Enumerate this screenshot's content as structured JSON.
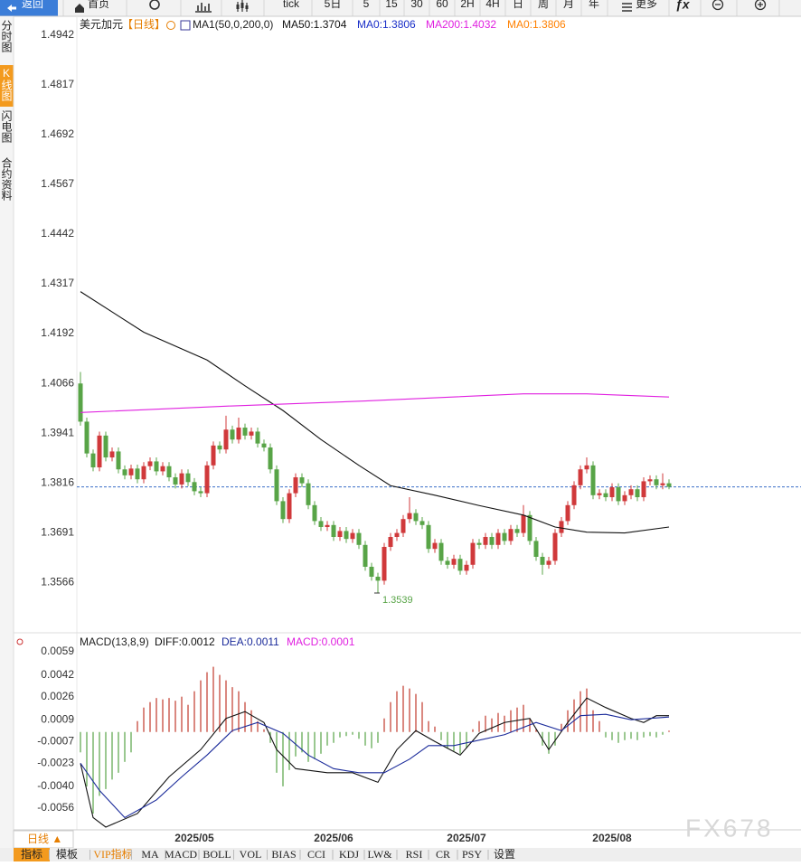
{
  "toolbar": {
    "back": "返回",
    "home": "首页",
    "items": [
      "tick",
      "5日",
      "5",
      "15",
      "30",
      "60",
      "2H",
      "4H",
      "日",
      "周",
      "月",
      "年"
    ],
    "more": "更多"
  },
  "sidebar": [
    "分时图",
    "K线图",
    "闪电图",
    "合约资料"
  ],
  "period_button": "日线 ▲",
  "bottom_tabs": [
    "指标",
    "模板",
    "VIP指标",
    "MA",
    "MACD",
    "BOLL",
    "VOL",
    "BIAS",
    "CCI",
    "KDJ",
    "LW&",
    "RSI",
    "CR",
    "PSY",
    "设置"
  ],
  "watermark": "FX678",
  "chart_data": [
    {
      "type": "candlestick",
      "title": "美元加元",
      "period": "【日线】",
      "indicator": "MA1(50,0,200,0)",
      "up_color": "#d0393b",
      "down_color": "#58a447",
      "ylim": [
        1.3439,
        1.4985
      ],
      "yticks": [
        1.4942,
        1.4817,
        1.4692,
        1.4567,
        1.4442,
        1.4317,
        1.4192,
        1.4066,
        1.3941,
        1.3816,
        1.3691,
        1.3566
      ],
      "ohlc": [
        [
          1.4066,
          1.4095,
          1.396,
          1.397
        ],
        [
          1.397,
          1.398,
          1.388,
          1.389
        ],
        [
          1.389,
          1.39,
          1.3845,
          1.3855
        ],
        [
          1.3855,
          1.3945,
          1.3845,
          1.3935
        ],
        [
          1.3935,
          1.3945,
          1.387,
          1.388
        ],
        [
          1.388,
          1.3905,
          1.387,
          1.3895
        ],
        [
          1.3895,
          1.3905,
          1.384,
          1.385
        ],
        [
          1.385,
          1.386,
          1.3825,
          1.3835
        ],
        [
          1.3835,
          1.3862,
          1.3825,
          1.3852
        ],
        [
          1.3852,
          1.3862,
          1.3815,
          1.3825
        ],
        [
          1.3825,
          1.3868,
          1.3815,
          1.3858
        ],
        [
          1.3858,
          1.388,
          1.3848,
          1.387
        ],
        [
          1.387,
          1.388,
          1.3835,
          1.3845
        ],
        [
          1.3845,
          1.3868,
          1.3835,
          1.3858
        ],
        [
          1.3858,
          1.3868,
          1.382,
          1.383
        ],
        [
          1.383,
          1.384,
          1.3802,
          1.3812
        ],
        [
          1.3812,
          1.385,
          1.3802,
          1.384
        ],
        [
          1.384,
          1.385,
          1.3808,
          1.3818
        ],
        [
          1.3818,
          1.3828,
          1.3785,
          1.3795
        ],
        [
          1.3795,
          1.3805,
          1.378,
          1.379
        ],
        [
          1.379,
          1.387,
          1.378,
          1.386
        ],
        [
          1.386,
          1.392,
          1.385,
          1.391
        ],
        [
          1.391,
          1.392,
          1.389,
          1.39
        ],
        [
          1.39,
          1.3985,
          1.389,
          1.395
        ],
        [
          1.395,
          1.396,
          1.3915,
          1.3925
        ],
        [
          1.3925,
          1.398,
          1.3915,
          1.3955
        ],
        [
          1.3955,
          1.3965,
          1.3925,
          1.3935
        ],
        [
          1.3935,
          1.3955,
          1.3925,
          1.3945
        ],
        [
          1.3945,
          1.3955,
          1.3905,
          1.3915
        ],
        [
          1.3915,
          1.3925,
          1.3895,
          1.3905
        ],
        [
          1.3905,
          1.3915,
          1.384,
          1.385
        ],
        [
          1.385,
          1.386,
          1.376,
          1.377
        ],
        [
          1.377,
          1.378,
          1.3715,
          1.3725
        ],
        [
          1.3725,
          1.38,
          1.3715,
          1.379
        ],
        [
          1.379,
          1.384,
          1.378,
          1.383
        ],
        [
          1.383,
          1.384,
          1.3805,
          1.3815
        ],
        [
          1.3815,
          1.3825,
          1.375,
          1.376
        ],
        [
          1.376,
          1.377,
          1.371,
          1.372
        ],
        [
          1.372,
          1.373,
          1.3695,
          1.3705
        ],
        [
          1.3705,
          1.372,
          1.3695,
          1.371
        ],
        [
          1.371,
          1.372,
          1.367,
          1.368
        ],
        [
          1.368,
          1.3705,
          1.367,
          1.3695
        ],
        [
          1.3695,
          1.3705,
          1.3665,
          1.3675
        ],
        [
          1.3675,
          1.37,
          1.3665,
          1.369
        ],
        [
          1.369,
          1.37,
          1.365,
          1.366
        ],
        [
          1.366,
          1.367,
          1.3595,
          1.3605
        ],
        [
          1.3605,
          1.3615,
          1.357,
          1.358
        ],
        [
          1.358,
          1.359,
          1.3539,
          1.357
        ],
        [
          1.357,
          1.3665,
          1.356,
          1.3655
        ],
        [
          1.3655,
          1.369,
          1.3645,
          1.368
        ],
        [
          1.368,
          1.37,
          1.367,
          1.369
        ],
        [
          1.369,
          1.3735,
          1.368,
          1.3725
        ],
        [
          1.3725,
          1.378,
          1.3715,
          1.374
        ],
        [
          1.374,
          1.375,
          1.371,
          1.372
        ],
        [
          1.372,
          1.373,
          1.37,
          1.371
        ],
        [
          1.371,
          1.372,
          1.364,
          1.365
        ],
        [
          1.365,
          1.3675,
          1.364,
          1.3665
        ],
        [
          1.3665,
          1.3675,
          1.361,
          1.362
        ],
        [
          1.362,
          1.363,
          1.36,
          1.361
        ],
        [
          1.361,
          1.3635,
          1.36,
          1.3625
        ],
        [
          1.3625,
          1.3635,
          1.3585,
          1.3595
        ],
        [
          1.3595,
          1.362,
          1.3585,
          1.361
        ],
        [
          1.361,
          1.3675,
          1.36,
          1.3665
        ],
        [
          1.3665,
          1.3675,
          1.365,
          1.366
        ],
        [
          1.366,
          1.369,
          1.365,
          1.368
        ],
        [
          1.368,
          1.369,
          1.365,
          1.366
        ],
        [
          1.366,
          1.37,
          1.365,
          1.369
        ],
        [
          1.369,
          1.37,
          1.366,
          1.367
        ],
        [
          1.367,
          1.371,
          1.366,
          1.37
        ],
        [
          1.37,
          1.371,
          1.368,
          1.369
        ],
        [
          1.369,
          1.376,
          1.368,
          1.3735
        ],
        [
          1.3735,
          1.3745,
          1.366,
          1.367
        ],
        [
          1.367,
          1.368,
          1.362,
          1.363
        ],
        [
          1.363,
          1.364,
          1.3585,
          1.361
        ],
        [
          1.361,
          1.363,
          1.36,
          1.362
        ],
        [
          1.362,
          1.37,
          1.361,
          1.369
        ],
        [
          1.369,
          1.373,
          1.368,
          1.372
        ],
        [
          1.372,
          1.377,
          1.371,
          1.376
        ],
        [
          1.376,
          1.382,
          1.375,
          1.381
        ],
        [
          1.381,
          1.386,
          1.38,
          1.385
        ],
        [
          1.385,
          1.388,
          1.384,
          1.386
        ],
        [
          1.386,
          1.387,
          1.3775,
          1.3785
        ],
        [
          1.3785,
          1.38,
          1.3775,
          1.379
        ],
        [
          1.379,
          1.38,
          1.377,
          1.378
        ],
        [
          1.378,
          1.3815,
          1.377,
          1.3805
        ],
        [
          1.3805,
          1.3815,
          1.376,
          1.377
        ],
        [
          1.377,
          1.3795,
          1.376,
          1.3785
        ],
        [
          1.3785,
          1.381,
          1.3775,
          1.38
        ],
        [
          1.38,
          1.381,
          1.377,
          1.378
        ],
        [
          1.378,
          1.383,
          1.377,
          1.382
        ],
        [
          1.382,
          1.3835,
          1.381,
          1.3825
        ],
        [
          1.3825,
          1.3835,
          1.38,
          1.381
        ],
        [
          1.381,
          1.384,
          1.38,
          1.3815
        ],
        [
          1.3815,
          1.3825,
          1.38,
          1.3806
        ]
      ],
      "ma_lines": [
        {
          "name": "MA50",
          "label": "MA50:1.3704",
          "color": "#111111",
          "x": [
            0,
            10,
            20,
            26,
            32,
            38,
            44,
            49,
            56,
            63,
            70,
            75,
            80,
            86,
            93
          ],
          "values": [
            1.4297,
            1.4195,
            1.4125,
            1.406,
            1.3998,
            1.3925,
            1.386,
            1.3809,
            1.3785,
            1.3759,
            1.3735,
            1.3705,
            1.3692,
            1.369,
            1.3705
          ]
        },
        {
          "name": "MA200",
          "label": "MA200:1.4032",
          "color": "#e020e0",
          "x": [
            0,
            23,
            45,
            56,
            70,
            80,
            93
          ],
          "values": [
            1.3993,
            1.4009,
            1.4022,
            1.403,
            1.404,
            1.404,
            1.4032
          ]
        }
      ],
      "extra_labels": [
        {
          "label": "MA0:1.3806",
          "color": "#1a2fc8"
        },
        {
          "label": "MA0:1.3806",
          "color": "#ff8000"
        }
      ],
      "last_line_color": "#3a6fc8"
    },
    {
      "type": "macd",
      "title": "MACD(13,8,9)",
      "ylim": [
        -0.0072,
        0.0073
      ],
      "yticks": [
        0.0059,
        0.0042,
        0.0026,
        0.0009,
        -0.0007,
        -0.0023,
        {
          "value": -0.004,
          "label": "-0.0040"
        },
        -0.0056
      ],
      "categories": [
        null,
        null,
        null,
        null,
        null,
        null,
        null,
        null,
        null,
        null,
        null,
        null,
        null,
        null,
        null,
        null,
        null,
        null,
        "2025/05",
        null,
        null,
        null,
        null,
        null,
        null,
        null,
        null,
        null,
        null,
        null,
        null,
        null,
        null,
        null,
        null,
        null,
        null,
        null,
        null,
        null,
        "2025/06",
        null,
        null,
        null,
        null,
        null,
        null,
        null,
        null,
        null,
        null,
        null,
        null,
        null,
        null,
        null,
        null,
        null,
        null,
        null,
        null,
        "2025/07",
        null,
        null,
        null,
        null,
        null,
        null,
        null,
        null,
        null,
        null,
        null,
        null,
        null,
        null,
        null,
        null,
        null,
        null,
        null,
        null,
        null,
        null,
        "2025/08",
        null,
        null,
        null,
        null,
        null,
        null,
        null,
        null,
        null
      ],
      "histogram": {
        "label": "MACD:0.0001",
        "color": "#e020e0",
        "up_color": "#c0392b",
        "down_color": "#58a447",
        "values": [
          -0.0015,
          -0.004,
          -0.006,
          -0.0047,
          -0.0042,
          -0.0035,
          -0.003,
          -0.0022,
          -0.0015,
          0.0008,
          0.0018,
          0.0022,
          0.0025,
          0.0024,
          0.0025,
          0.0023,
          0.0026,
          0.002,
          0.003,
          0.0038,
          0.0044,
          0.0048,
          0.0042,
          0.0038,
          0.0033,
          0.003,
          0.0022,
          0.0016,
          0.0008,
          0.0002,
          -0.0008,
          -0.003,
          -0.004,
          -0.0028,
          -0.0018,
          -0.0015,
          -0.0022,
          -0.002,
          -0.0016,
          -0.001,
          -0.0008,
          -0.0004,
          -0.0003,
          -0.0002,
          -0.0005,
          -0.001,
          -0.0012,
          -0.0008,
          0.001,
          0.0022,
          0.003,
          0.0034,
          0.0032,
          0.0028,
          0.0022,
          0.0008,
          0.0004,
          -0.0006,
          -0.0012,
          -0.0014,
          -0.0016,
          -0.0012,
          0.0002,
          0.0008,
          0.0012,
          0.001,
          0.0014,
          0.0012,
          0.0016,
          0.0018,
          0.002,
          0.001,
          0.0002,
          -0.001,
          -0.0016,
          -0.001,
          0.0006,
          0.0016,
          0.0024,
          0.003,
          0.0032,
          0.0016,
          0.0008,
          -0.0004,
          -0.0006,
          -0.0008,
          -0.0006,
          -0.0005,
          -0.0006,
          -0.0004,
          -0.0003,
          -0.0004,
          -0.0002,
          0.0001
        ]
      },
      "series": [
        {
          "name": "DIFF",
          "label": "DIFF:0.0012",
          "color": "#111111",
          "x": [
            0,
            2,
            4,
            9,
            14,
            19,
            23,
            26,
            29,
            31,
            34,
            39,
            43,
            47,
            50,
            53,
            56,
            60,
            63,
            67,
            71,
            74,
            77,
            80,
            83,
            87,
            89,
            91,
            93
          ],
          "values": [
            -0.0023,
            -0.0063,
            -0.007,
            -0.006,
            -0.0033,
            -0.0013,
            0.001,
            0.0015,
            0.0007,
            -0.0013,
            -0.0027,
            -0.003,
            -0.003,
            -0.0037,
            -0.0013,
            0.0001,
            -0.0007,
            -0.0017,
            -0.0001,
            0.0007,
            0.001,
            -0.0013,
            0.0007,
            0.0025,
            0.0018,
            0.001,
            0.0007,
            0.0012,
            0.0012
          ]
        },
        {
          "name": "DEA",
          "label": "DEA:0.0011",
          "color": "#1a2a9a",
          "x": [
            0,
            3,
            7,
            12,
            16,
            20,
            24,
            28,
            32,
            36,
            40,
            44,
            48,
            52,
            55,
            59,
            62,
            67,
            72,
            76,
            79,
            83,
            87,
            93
          ],
          "values": [
            -0.0023,
            -0.0043,
            -0.0063,
            -0.005,
            -0.0033,
            -0.0017,
            0.0001,
            0.0007,
            -0.0001,
            -0.0017,
            -0.0027,
            -0.003,
            -0.003,
            -0.002,
            -0.001,
            -0.001,
            -0.0007,
            -0.0002,
            0.0007,
            0.0001,
            0.0012,
            0.0013,
            0.0009,
            0.0011
          ]
        }
      ]
    }
  ]
}
